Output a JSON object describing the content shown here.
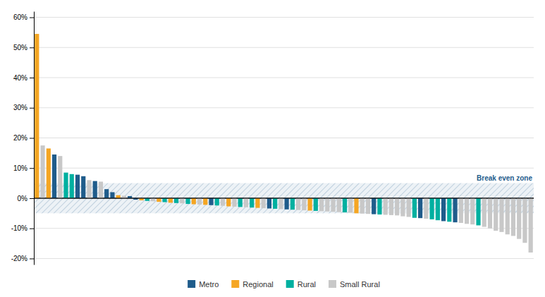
{
  "chart_data": {
    "type": "bar",
    "stacked": true,
    "grid": true,
    "legend": "bottom",
    "tick_labels": "y",
    "categories": [
      null,
      null,
      null,
      null,
      null,
      null,
      null,
      null,
      null,
      null,
      null,
      null,
      null,
      null,
      null,
      null,
      null,
      null,
      null,
      null,
      null,
      null,
      null,
      null,
      null,
      null,
      null,
      null,
      null,
      null,
      null,
      null,
      null,
      null,
      null,
      null,
      null,
      null,
      null,
      null,
      null,
      null,
      null,
      null,
      null,
      null,
      null,
      null,
      null,
      null,
      null,
      null,
      null,
      null,
      null,
      null,
      null,
      null,
      null,
      null,
      null,
      null,
      null,
      null,
      null,
      null,
      null,
      null,
      null,
      null,
      null,
      null,
      null,
      null,
      null,
      null,
      null,
      null,
      null,
      null,
      null,
      null,
      null,
      null,
      null,
      null
    ],
    "series": [
      {
        "name": "Metro",
        "color": "#1f5c8b",
        "values": [
          null,
          null,
          null,
          0.145,
          null,
          null,
          null,
          0.078,
          0.073,
          null,
          0.057,
          null,
          0.03,
          0.02,
          null,
          null,
          0.007,
          -0.005,
          null,
          null,
          null,
          null,
          null,
          null,
          null,
          null,
          null,
          null,
          null,
          null,
          -0.023,
          null,
          null,
          null,
          null,
          null,
          null,
          null,
          null,
          null,
          -0.034,
          null,
          null,
          -0.037,
          null,
          null,
          null,
          null,
          null,
          null,
          null,
          null,
          null,
          null,
          null,
          null,
          null,
          null,
          -0.053,
          null,
          null,
          null,
          null,
          null,
          null,
          null,
          -0.066,
          null,
          null,
          null,
          -0.076,
          null,
          -0.08,
          null,
          null,
          null,
          null,
          null,
          null,
          null,
          null,
          null,
          null,
          null,
          null,
          null
        ]
      },
      {
        "name": "Regional",
        "color": "#f5a623",
        "values": [
          0.545,
          null,
          0.165,
          null,
          null,
          null,
          null,
          null,
          null,
          null,
          null,
          null,
          null,
          null,
          0.01,
          null,
          null,
          null,
          -0.007,
          null,
          null,
          -0.012,
          null,
          -0.015,
          null,
          null,
          null,
          -0.02,
          null,
          -0.022,
          null,
          null,
          null,
          -0.027,
          null,
          null,
          null,
          null,
          -0.032,
          null,
          null,
          null,
          null,
          null,
          null,
          null,
          null,
          -0.041,
          null,
          null,
          null,
          null,
          null,
          null,
          null,
          -0.05,
          null,
          null,
          null,
          null,
          null,
          null,
          null,
          null,
          null,
          null,
          null,
          null,
          null,
          null,
          null,
          null,
          null,
          null,
          null,
          null,
          null,
          null,
          null,
          null,
          null,
          null,
          null,
          null,
          null,
          null
        ]
      },
      {
        "name": "Rural",
        "color": "#00b0a0",
        "values": [
          null,
          null,
          null,
          null,
          null,
          0.085,
          0.08,
          null,
          null,
          null,
          null,
          null,
          null,
          null,
          null,
          null,
          null,
          null,
          null,
          -0.009,
          null,
          null,
          -0.013,
          null,
          -0.016,
          null,
          -0.019,
          null,
          null,
          null,
          null,
          -0.024,
          null,
          null,
          null,
          -0.029,
          null,
          -0.031,
          null,
          null,
          null,
          -0.035,
          null,
          null,
          -0.038,
          null,
          null,
          null,
          -0.042,
          null,
          null,
          null,
          null,
          -0.047,
          null,
          null,
          null,
          null,
          null,
          -0.054,
          null,
          null,
          null,
          null,
          null,
          -0.065,
          null,
          null,
          -0.07,
          -0.073,
          null,
          -0.078,
          null,
          null,
          null,
          null,
          -0.09,
          null,
          null,
          null,
          null,
          null,
          null,
          null,
          null,
          null
        ]
      },
      {
        "name": "Small Rural",
        "color": "#c8c8c8",
        "values": [
          null,
          0.175,
          null,
          null,
          0.14,
          null,
          null,
          null,
          null,
          0.06,
          null,
          0.055,
          null,
          null,
          null,
          0.008,
          null,
          null,
          null,
          null,
          -0.01,
          null,
          null,
          null,
          null,
          -0.017,
          null,
          null,
          -0.021,
          null,
          null,
          null,
          -0.025,
          null,
          -0.028,
          null,
          -0.03,
          null,
          null,
          -0.033,
          null,
          null,
          -0.036,
          null,
          null,
          -0.039,
          -0.04,
          null,
          null,
          -0.043,
          -0.044,
          -0.045,
          -0.046,
          null,
          -0.048,
          null,
          -0.051,
          -0.052,
          null,
          null,
          -0.055,
          -0.056,
          -0.057,
          -0.06,
          -0.062,
          null,
          null,
          -0.068,
          null,
          null,
          null,
          null,
          null,
          -0.082,
          -0.085,
          -0.087,
          null,
          -0.095,
          -0.1,
          -0.108,
          -0.112,
          -0.12,
          -0.125,
          -0.135,
          -0.148,
          -0.18
        ]
      }
    ],
    "ylim": [
      -0.22,
      0.62
    ],
    "yticks": [
      {
        "value": -0.2,
        "label": "-20%"
      },
      {
        "value": -0.1,
        "label": "-10%"
      },
      {
        "value": 0.0,
        "label": "0%"
      },
      {
        "value": 0.1,
        "label": "10%"
      },
      {
        "value": 0.2,
        "label": "20%"
      },
      {
        "value": 0.3,
        "label": "30%"
      },
      {
        "value": 0.4,
        "label": "40%"
      },
      {
        "value": 0.5,
        "label": "50%"
      },
      {
        "value": 0.6,
        "label": "60%"
      }
    ],
    "annotations": [
      {
        "text": "Break even zone",
        "band": [
          -0.05,
          0.05
        ],
        "color": "#1f5c8b"
      }
    ]
  }
}
